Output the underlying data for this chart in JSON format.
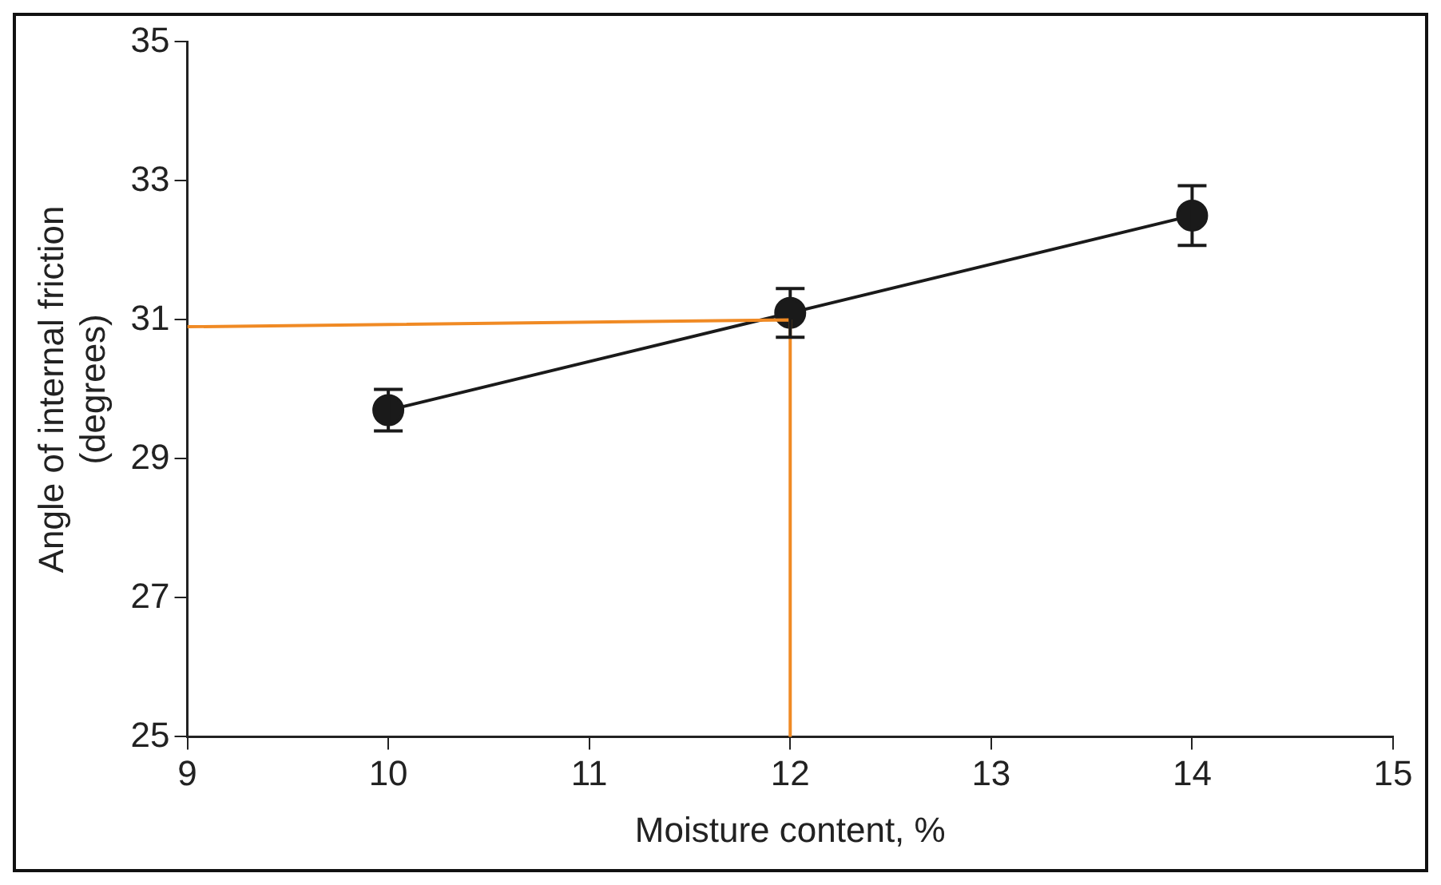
{
  "chart_data": {
    "type": "line",
    "xlabel": "Moisture content, %",
    "ylabel": "Angle of internal friction\n(degrees)",
    "xlim": [
      9,
      15
    ],
    "xticks": [
      9,
      10,
      11,
      12,
      13,
      14,
      15
    ],
    "ylim": [
      25,
      35
    ],
    "yticks": [
      25,
      27,
      29,
      31,
      33,
      35
    ],
    "grid": false,
    "legend": false,
    "series": [
      {
        "color": "#1a1a1a",
        "x": [
          10,
          12,
          14
        ],
        "values": [
          29.7,
          31.1,
          32.5
        ],
        "errors": [
          0.3,
          0.35,
          0.43
        ],
        "marker": "circle",
        "line_style": "solid"
      },
      {
        "color": "#f08a24",
        "x": [
          9,
          12,
          12
        ],
        "values": [
          30.9,
          31,
          25
        ],
        "marker": "none",
        "line_style": "solid"
      }
    ]
  }
}
